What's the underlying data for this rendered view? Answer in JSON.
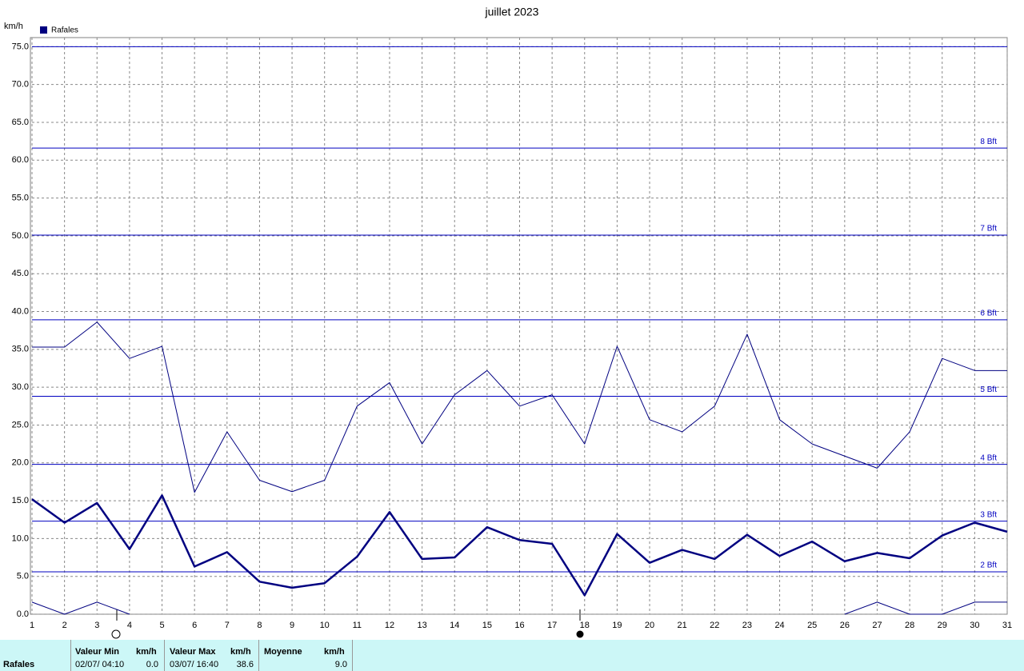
{
  "chart_data": {
    "type": "line",
    "title": "juillet 2023",
    "y_unit": "km/h",
    "legend": "Rafales",
    "x": [
      1,
      2,
      3,
      4,
      5,
      6,
      7,
      8,
      9,
      10,
      11,
      12,
      13,
      14,
      15,
      16,
      17,
      18,
      19,
      20,
      21,
      22,
      23,
      24,
      25,
      26,
      27,
      28,
      29,
      30,
      31
    ],
    "xlim": [
      1,
      31
    ],
    "ylim": [
      0,
      76.2
    ],
    "yticks": [
      {
        "value": 0,
        "label": "0.0"
      },
      {
        "value": 5,
        "label": "5.0"
      },
      {
        "value": 10,
        "label": "10.0"
      },
      {
        "value": 15,
        "label": "15.0"
      },
      {
        "value": 20,
        "label": "20.0"
      },
      {
        "value": 25,
        "label": "25.0"
      },
      {
        "value": 30,
        "label": "30.0"
      },
      {
        "value": 35,
        "label": "35.0"
      },
      {
        "value": 40,
        "label": "40.0"
      },
      {
        "value": 45,
        "label": "45.0"
      },
      {
        "value": 50,
        "label": "50.0"
      },
      {
        "value": 55,
        "label": "55.0"
      },
      {
        "value": 60,
        "label": "60.0"
      },
      {
        "value": 65,
        "label": "65.0"
      },
      {
        "value": 70,
        "label": "70.0"
      },
      {
        "value": 75,
        "label": "75.0"
      }
    ],
    "grid": true,
    "series": [
      {
        "color": "#000080",
        "width": 1,
        "values": [
          35.3,
          35.3,
          38.6,
          33.8,
          35.4,
          16.1,
          24.1,
          17.7,
          16.2,
          17.7,
          27.5,
          30.6,
          22.5,
          29.0,
          32.2,
          27.5,
          29.0,
          22.5,
          35.4,
          25.7,
          24.1,
          27.5,
          37.0,
          25.7,
          22.5,
          20.9,
          19.3,
          24.1,
          33.8,
          32.2,
          32.2
        ]
      },
      {
        "color": "#000080",
        "width": 2.5,
        "values": [
          15.2,
          12.1,
          14.7,
          8.6,
          15.7,
          6.3,
          8.2,
          4.3,
          3.5,
          4.1,
          7.6,
          13.5,
          7.3,
          7.5,
          11.5,
          9.8,
          9.3,
          2.5,
          10.6,
          6.8,
          8.5,
          7.3,
          10.5,
          7.7,
          9.6,
          7.0,
          8.1,
          7.4,
          10.4,
          12.1,
          10.9
        ]
      },
      {
        "color": "#000080",
        "width": 1,
        "values": [
          1.6,
          0,
          1.6,
          0,
          null,
          null,
          null,
          null,
          null,
          null,
          null,
          null,
          null,
          null,
          null,
          null,
          null,
          null,
          null,
          null,
          null,
          null,
          null,
          null,
          null,
          0,
          1.6,
          0,
          0,
          1.6,
          1.6
        ]
      }
    ],
    "thresholds": {
      "color": "#0000c0",
      "values": [
        5.6,
        12.3,
        19.8,
        28.8,
        38.9,
        50.1,
        61.6,
        75.0
      ],
      "labels": [
        "2 Bft",
        "3 Bft",
        "4 Bft",
        "5 Bft",
        "6 Bft",
        "7 Bft",
        "8 Bft",
        null
      ]
    }
  },
  "summary": {
    "headers": [
      "Valeur Min",
      "km/h",
      "Valeur Max",
      "km/h",
      "Moyenne",
      "km/h"
    ],
    "row_label": "Rafales",
    "min_time": "02/07/ 04:10",
    "min_value": "0.0",
    "max_time": "03/07/ 16:40",
    "max_value": "38.6",
    "mean_value": "9.0"
  }
}
